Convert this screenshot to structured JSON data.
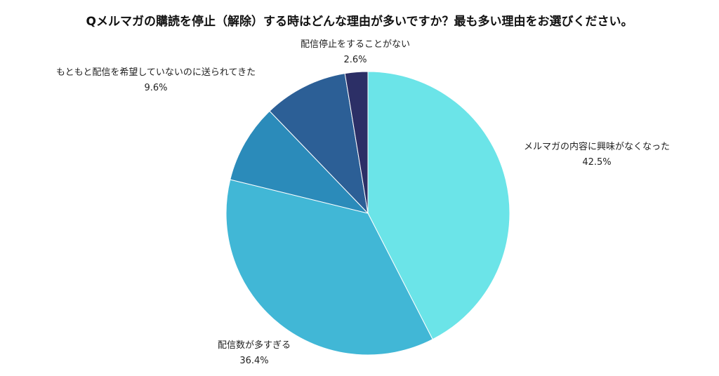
{
  "title": "Qメルマガの購読を停止（解除）する時はどんな理由が多いですか？最も多い理由をお選びください。",
  "chart_data": {
    "type": "pie",
    "title": "Qメルマガの購読を停止（解除）する時はどんな理由が多いですか？最も多い理由をお選びください。",
    "slices": [
      {
        "label": "メルマガの内容に興味がなくなった",
        "value": 42.5,
        "value_label": "42.5%",
        "color": "#6BE4E8"
      },
      {
        "label": "配信数が多すぎる",
        "value": 36.4,
        "value_label": "36.4%",
        "color": "#41B7D6"
      },
      {
        "label": "",
        "value": 9.0,
        "value_label": "",
        "color": "#2B8BBA"
      },
      {
        "label": "もともと配信を希望していないのに送られてきた",
        "value": 9.6,
        "value_label": "9.6%",
        "color": "#2C5F96"
      },
      {
        "label": "配信停止をすることがない",
        "value": 2.6,
        "value_label": "2.6%",
        "color": "#2C2F66"
      }
    ],
    "start_angle_deg": 0,
    "direction": "clockwise"
  }
}
